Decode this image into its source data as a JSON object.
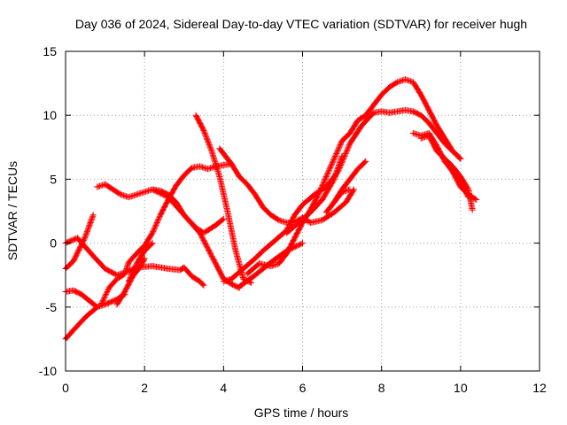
{
  "chart_data": {
    "type": "scatter",
    "title": "Day 036 of 2024, Sidereal Day-to-day VTEC variation (SDTVAR) for receiver hugh",
    "xlabel": "GPS time / hours",
    "ylabel": "SDTVAR / TECUs",
    "xlim": [
      0,
      12
    ],
    "ylim": [
      -10,
      15
    ],
    "xticks": [
      0,
      2,
      4,
      6,
      8,
      10,
      12
    ],
    "yticks": [
      -10,
      -5,
      0,
      5,
      10,
      15
    ],
    "grid": true,
    "marker": "plus",
    "color": "#ff0000",
    "series": [
      {
        "x": [
          0.0,
          0.3,
          0.7,
          1.0,
          1.3,
          1.6,
          1.8
        ],
        "y": [
          0.0,
          0.4,
          -1.0,
          -2.0,
          -2.5,
          -2.2,
          -1.9
        ]
      },
      {
        "x": [
          1.8,
          2.2,
          2.6,
          2.9,
          3.0,
          3.2,
          3.4,
          3.5
        ],
        "y": [
          -1.9,
          -1.8,
          -2.0,
          -2.1,
          -1.9,
          -2.6,
          -3.0,
          -3.3
        ]
      },
      {
        "x": [
          0.0,
          0.2,
          0.5,
          0.7
        ],
        "y": [
          -2.0,
          -1.4,
          0.5,
          2.2
        ]
      },
      {
        "x": [
          0.0,
          0.2,
          0.4,
          0.6,
          0.8
        ],
        "y": [
          -3.8,
          -3.7,
          -4.0,
          -4.5,
          -5.0
        ]
      },
      {
        "x": [
          0.0,
          0.2,
          0.5,
          0.8,
          1.0,
          1.3,
          1.5
        ],
        "y": [
          -7.5,
          -6.8,
          -5.8,
          -5.0,
          -4.8,
          -4.4,
          -4.0
        ]
      },
      {
        "x": [
          0.8,
          1.0,
          1.2,
          1.4,
          1.6,
          1.8,
          2.0,
          2.2,
          2.4,
          2.6,
          2.8,
          3.0,
          3.3,
          3.5,
          3.8,
          4.0
        ],
        "y": [
          4.4,
          4.6,
          4.2,
          3.8,
          3.6,
          3.8,
          4.0,
          4.2,
          4.1,
          3.8,
          3.2,
          2.2,
          1.2,
          0.8,
          1.4,
          1.9
        ]
      },
      {
        "x": [
          0.9,
          1.1,
          1.3,
          1.5,
          1.6,
          1.8,
          2.0,
          2.2,
          2.4,
          2.6,
          2.8,
          3.0,
          3.2,
          3.4,
          3.6,
          3.8,
          4.0,
          4.2
        ],
        "y": [
          -4.8,
          -3.5,
          -2.8,
          -2.4,
          -1.5,
          -0.8,
          -0.2,
          0.8,
          2.2,
          3.4,
          4.5,
          5.3,
          5.9,
          6.0,
          5.8,
          6.0,
          6.1,
          6.2
        ]
      },
      {
        "x": [
          1.3,
          1.5,
          1.7,
          1.9,
          2.0
        ],
        "y": [
          -4.8,
          -3.8,
          -2.6,
          -1.8,
          -1.2
        ]
      },
      {
        "x": [
          1.6,
          1.8,
          2.0,
          2.2
        ],
        "y": [
          -3.0,
          -1.6,
          -0.6,
          0.0
        ]
      },
      {
        "x": [
          3.3,
          3.5,
          3.7,
          3.9,
          4.1,
          4.3,
          4.5,
          4.7
        ],
        "y": [
          10.0,
          8.8,
          7.2,
          5.2,
          2.5,
          -0.5,
          -2.8,
          -3.1
        ]
      },
      {
        "x": [
          2.2,
          2.6,
          3.0,
          3.4,
          3.8,
          4.0,
          4.2,
          4.4
        ],
        "y": [
          4.2,
          3.6,
          2.2,
          0.8,
          -1.6,
          -2.8,
          -3.2,
          -3.5
        ]
      },
      {
        "x": [
          3.9,
          4.0,
          4.2,
          4.4,
          4.6,
          4.8,
          5.0,
          5.2,
          5.4,
          5.6,
          5.8,
          6.0,
          6.2,
          6.5,
          6.8,
          7.1,
          7.3
        ],
        "y": [
          7.4,
          7.0,
          6.2,
          5.2,
          4.6,
          3.8,
          2.8,
          2.2,
          1.8,
          1.6,
          1.6,
          2.0,
          1.6,
          1.8,
          2.4,
          3.2,
          4.2
        ]
      },
      {
        "x": [
          4.0,
          4.2,
          4.5,
          4.8,
          5.0,
          5.3,
          5.6,
          5.8,
          6.0,
          6.3,
          6.6,
          6.9,
          7.2,
          7.5,
          7.8,
          8.0,
          8.2,
          8.4,
          8.6,
          8.8,
          9.0,
          9.2,
          9.4,
          9.6,
          9.8,
          10.0
        ],
        "y": [
          -3.0,
          -2.8,
          -2.0,
          -1.2,
          -0.6,
          0.2,
          1.0,
          2.2,
          3.0,
          3.8,
          4.4,
          5.6,
          7.8,
          9.2,
          10.2,
          10.3,
          10.2,
          10.3,
          10.4,
          10.3,
          10.0,
          9.4,
          8.6,
          7.8,
          7.2,
          6.6
        ]
      },
      {
        "x": [
          4.6,
          4.9,
          5.2,
          5.4,
          5.6,
          5.8,
          6.0,
          6.2,
          6.4,
          6.6,
          6.8,
          7.0,
          7.2,
          7.4,
          7.6,
          7.8,
          8.0,
          8.2,
          8.4,
          8.6,
          8.8,
          9.0,
          9.2,
          9.4,
          9.6,
          9.8,
          10.0
        ],
        "y": [
          -2.4,
          -1.6,
          -1.8,
          -1.6,
          -0.8,
          0.4,
          1.6,
          2.6,
          3.8,
          5.2,
          6.6,
          8.0,
          8.6,
          9.6,
          10.0,
          10.8,
          11.6,
          12.2,
          12.6,
          12.8,
          12.6,
          11.6,
          10.4,
          9.2,
          8.2,
          7.2,
          6.6
        ]
      },
      {
        "x": [
          4.4,
          4.8,
          5.2,
          5.6,
          6.0
        ],
        "y": [
          -3.4,
          -2.5,
          -1.5,
          -0.6,
          0.0
        ]
      },
      {
        "x": [
          5.6,
          5.9,
          6.2,
          6.5,
          6.8,
          7.0
        ],
        "y": [
          0.8,
          1.6,
          2.4,
          3.4,
          5.0,
          6.8
        ]
      },
      {
        "x": [
          6.8,
          7.0,
          7.2,
          7.4,
          7.6
        ],
        "y": [
          3.2,
          4.2,
          5.0,
          5.8,
          6.4
        ]
      },
      {
        "x": [
          6.6,
          6.8,
          7.0,
          7.2
        ],
        "y": [
          2.4,
          3.2,
          4.0,
          4.2
        ]
      },
      {
        "x": [
          8.8,
          9.0,
          9.2,
          9.4,
          9.6,
          9.8,
          10.0,
          10.2
        ],
        "y": [
          8.6,
          8.4,
          8.6,
          7.6,
          6.4,
          5.6,
          4.8,
          3.6
        ]
      },
      {
        "x": [
          9.0,
          9.2,
          9.4,
          9.6,
          9.8,
          10.0,
          10.2,
          10.3
        ],
        "y": [
          8.2,
          8.4,
          7.2,
          6.6,
          6.0,
          5.2,
          4.2,
          2.6
        ]
      },
      {
        "x": [
          9.8,
          10.0,
          10.2,
          10.4
        ],
        "y": [
          5.6,
          4.4,
          3.8,
          3.4
        ]
      }
    ]
  }
}
